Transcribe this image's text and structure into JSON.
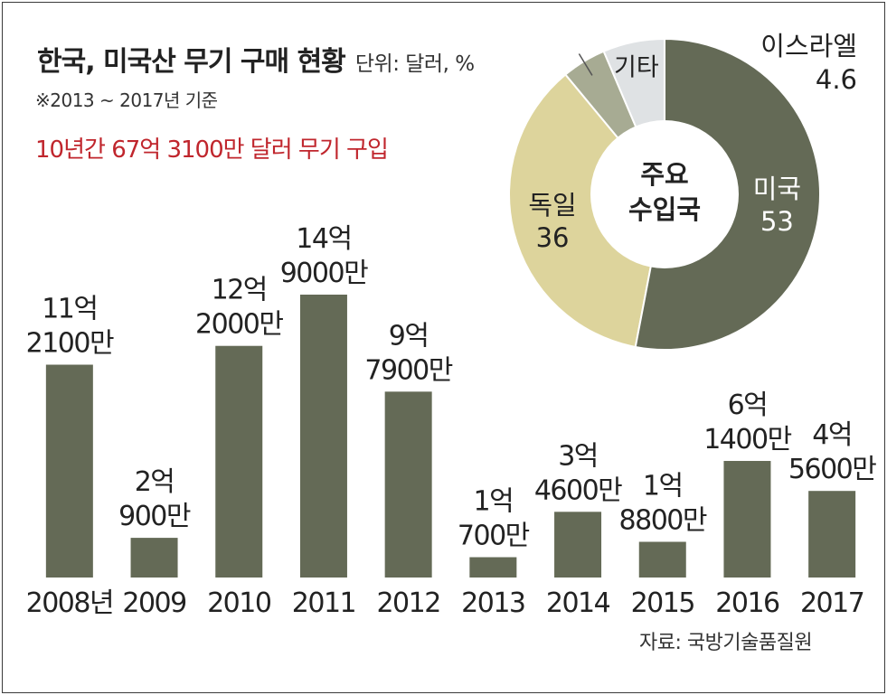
{
  "title": "한국, 미국산 무기 구매 현황",
  "unit": "단위: 달러, %",
  "period_note": "※2013 ~ 2017년 기준",
  "highlight": "10년간 67억 3100만 달러 무기 구입",
  "source": "자료: 국방기술품질원",
  "colors": {
    "bar": "#646a56",
    "highlight": "#c0262d",
    "usa": "#646a56",
    "germany": "#ddd49c",
    "israel": "#a7ab93",
    "other": "#dfe2e4"
  },
  "chart_data": [
    {
      "type": "bar",
      "unit": "달러",
      "categories": [
        "2008년",
        "2009",
        "2010",
        "2011",
        "2012",
        "2013",
        "2014",
        "2015",
        "2016",
        "2017"
      ],
      "values": [
        1121000000,
        209000000,
        1220000000,
        1490000000,
        979000000,
        107000000,
        346000000,
        188000000,
        614000000,
        456000000
      ],
      "labels": [
        [
          "11억",
          "2100만"
        ],
        [
          "2억",
          "900만"
        ],
        [
          "12억",
          "2000만"
        ],
        [
          "14억",
          "9000만"
        ],
        [
          "9억",
          "7900만"
        ],
        [
          "1억",
          "700만"
        ],
        [
          "3억",
          "4600만"
        ],
        [
          "1억",
          "8800만"
        ],
        [
          "6억",
          "1400만"
        ],
        [
          "4억",
          "5600만"
        ]
      ]
    },
    {
      "type": "pie",
      "title": "주요 수입국",
      "period": "2013 ~ 2017",
      "unit": "%",
      "slices": [
        {
          "label": "미국",
          "value": 53,
          "value_label": "53",
          "color": "#646a56"
        },
        {
          "label": "독일",
          "value": 36,
          "value_label": "36",
          "color": "#ddd49c"
        },
        {
          "label": "이스라엘",
          "value": 4.6,
          "value_label": "4.6",
          "color": "#a7ab93"
        },
        {
          "label": "기타",
          "value": 6.4,
          "value_label": "",
          "color": "#dfe2e4"
        }
      ]
    }
  ]
}
